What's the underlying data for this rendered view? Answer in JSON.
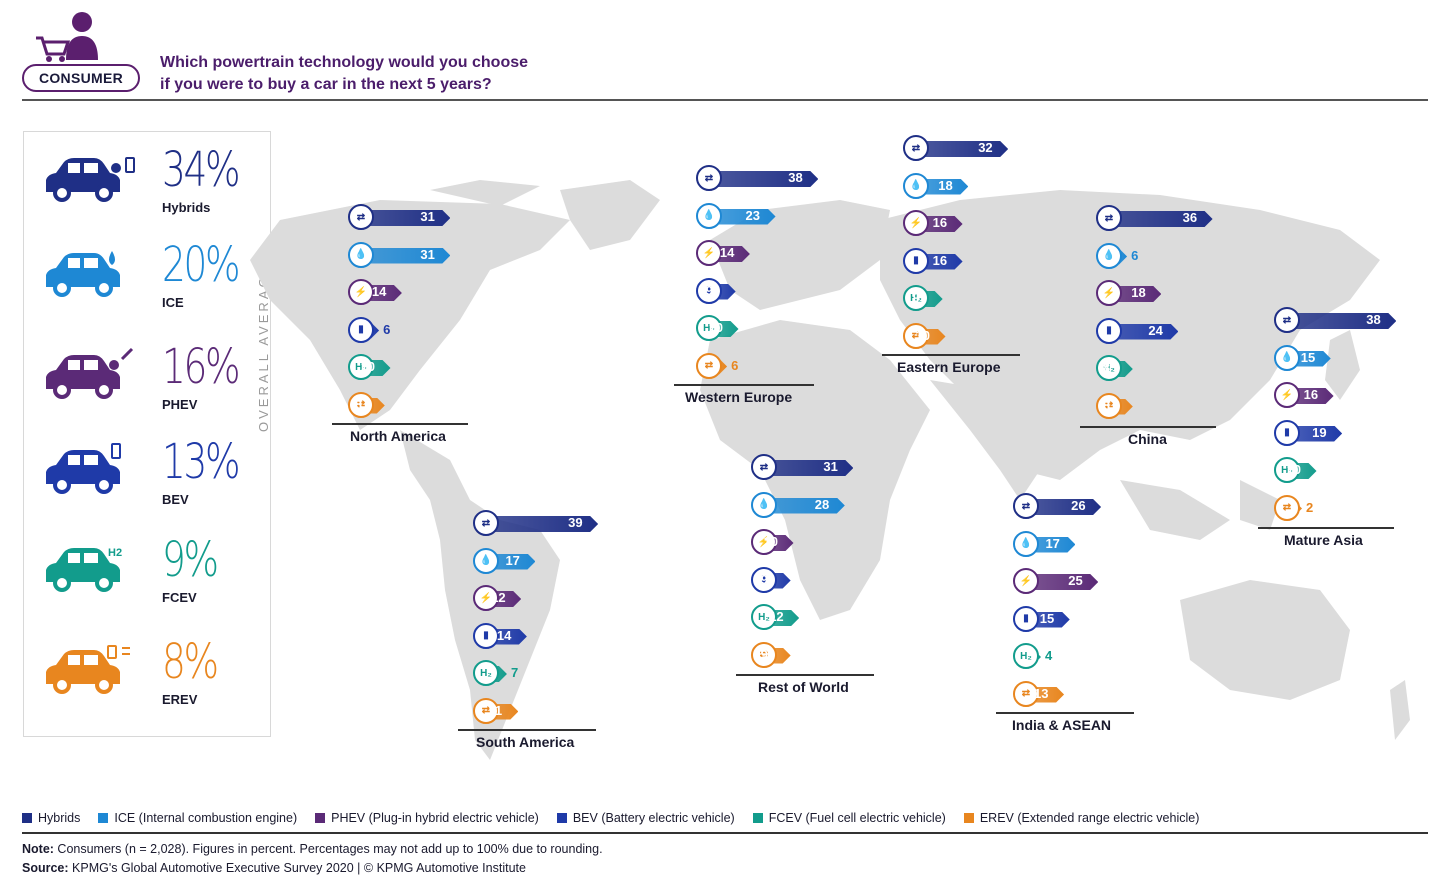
{
  "header": {
    "badge_label": "CONSUMER",
    "question_line1": "Which powertrain technology would you choose",
    "question_line2": "if you were to buy a car in the next 5 years?"
  },
  "overall": {
    "vertical_label": "OVERALL AVERAGE",
    "items": [
      {
        "pct": "34%",
        "name": "Hybrids",
        "color": "#1f2f86",
        "icon": "car-hybrid-icon"
      },
      {
        "pct": "20%",
        "name": "ICE",
        "color": "#1e88d4",
        "icon": "car-ice-icon"
      },
      {
        "pct": "16%",
        "name": "PHEV",
        "color": "#5b2a77",
        "icon": "car-phev-icon"
      },
      {
        "pct": "13%",
        "name": "BEV",
        "color": "#1f3aa8",
        "icon": "car-bev-icon"
      },
      {
        "pct": "9%",
        "name": "FCEV",
        "color": "#129c8c",
        "icon": "car-fcev-icon"
      },
      {
        "pct": "8%",
        "name": "EREV",
        "color": "#e8861f",
        "icon": "car-erev-icon"
      }
    ]
  },
  "chart_data": {
    "type": "bar",
    "categories": [
      "Hybrids",
      "ICE",
      "PHEV",
      "BEV",
      "FCEV",
      "EREV"
    ],
    "series": [
      {
        "name": "North America",
        "values": [
          31,
          31,
          14,
          6,
          10,
          8
        ]
      },
      {
        "name": "Western Europe",
        "values": [
          38,
          23,
          14,
          9,
          10,
          6
        ]
      },
      {
        "name": "Eastern Europe",
        "values": [
          32,
          18,
          16,
          16,
          9,
          10
        ]
      },
      {
        "name": "China",
        "values": [
          36,
          6,
          18,
          24,
          8,
          8
        ]
      },
      {
        "name": "Mature Asia",
        "values": [
          38,
          15,
          16,
          19,
          10,
          2
        ]
      },
      {
        "name": "South America",
        "values": [
          39,
          17,
          12,
          14,
          7,
          11
        ]
      },
      {
        "name": "Rest of World",
        "values": [
          31,
          28,
          10,
          9,
          12,
          9
        ]
      },
      {
        "name": "India & ASEAN",
        "values": [
          26,
          17,
          25,
          15,
          4,
          13
        ]
      }
    ],
    "overall_average": [
      34,
      20,
      16,
      13,
      9,
      8
    ],
    "colors": [
      "#1f2f86",
      "#1e88d4",
      "#5b2a77",
      "#1f3aa8",
      "#129c8c",
      "#e8861f"
    ],
    "icon_glyphs": [
      "⇄",
      "💧",
      "⚡",
      "▮",
      "H₂",
      "⇄"
    ]
  },
  "legend": [
    {
      "label": "Hybrids",
      "color": "#1f2f86"
    },
    {
      "label": "ICE (Internal combustion engine)",
      "color": "#1e88d4"
    },
    {
      "label": "PHEV (Plug-in hybrid electric vehicle)",
      "color": "#5b2a77"
    },
    {
      "label": "BEV (Battery electric vehicle)",
      "color": "#1f3aa8"
    },
    {
      "label": "FCEV (Fuel cell electric vehicle)",
      "color": "#129c8c"
    },
    {
      "label": "EREV (Extended range electric vehicle)",
      "color": "#e8861f"
    }
  ],
  "footer": {
    "note_label": "Note:",
    "note_text": " Consumers (n = 2,028). Figures in percent. Percentages may not add up to 100% due to rounding.",
    "source_label": "Source:",
    "source_text": " KPMG's Global Automotive Executive Survey 2020 | © KPMG Automotive Institute"
  }
}
